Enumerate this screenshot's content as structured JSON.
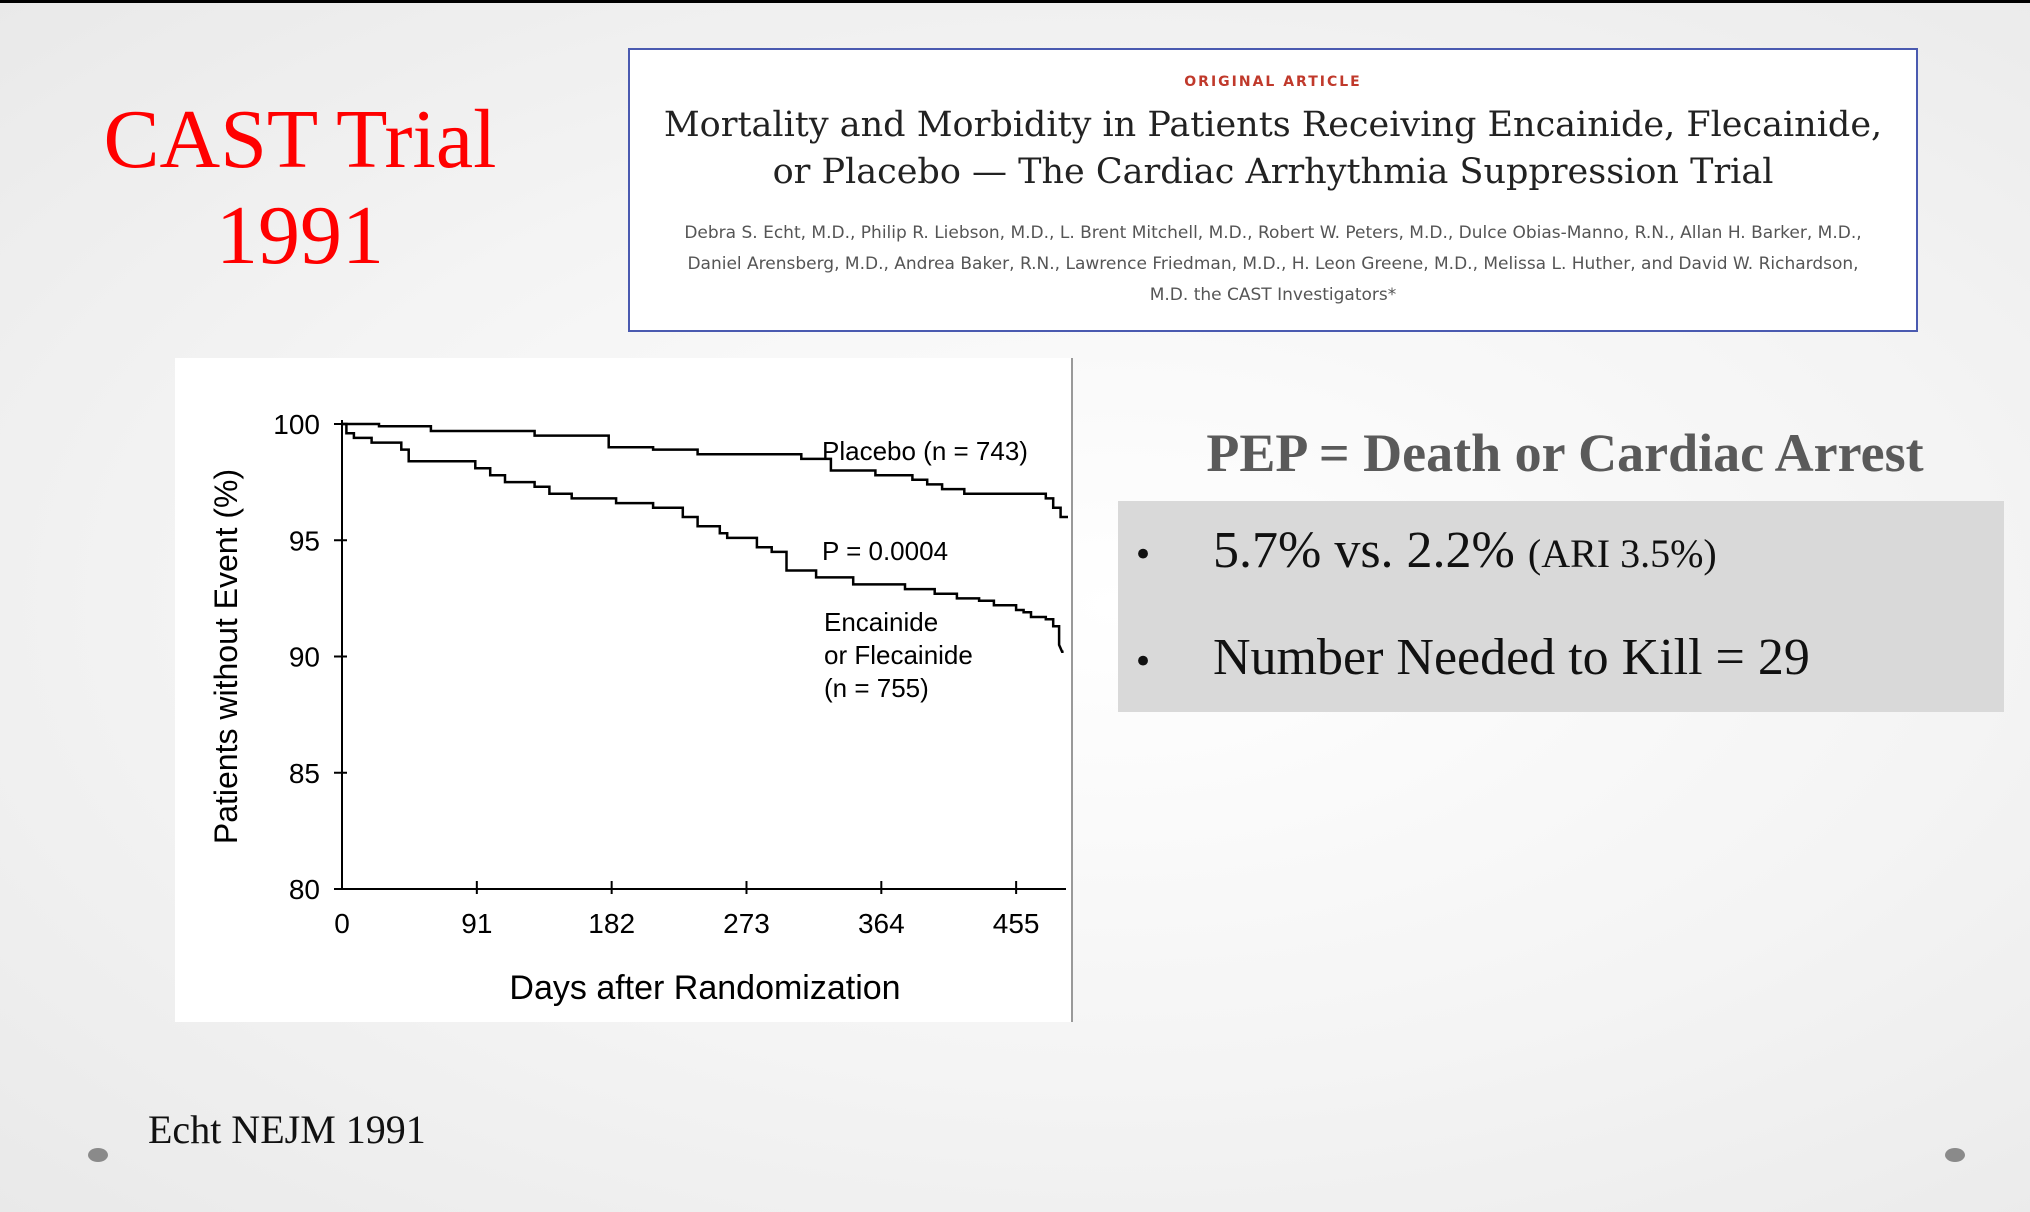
{
  "slide": {
    "title_line1": "CAST Trial",
    "title_line2": "1991",
    "citation": "Echt NEJM 1991"
  },
  "article": {
    "kicker": "ORIGINAL ARTICLE",
    "headline": "Mortality and Morbidity in Patients Receiving Encainide, Flecainide, or Placebo — The Cardiac Arrhythmia Suppression Trial",
    "authors": "Debra S. Echt, M.D., Philip R. Liebson, M.D., L. Brent Mitchell, M.D., Robert W. Peters, M.D., Dulce Obias-Manno, R.N., Allan H. Barker, M.D., Daniel Arensberg, M.D., Andrea Baker, R.N., Lawrence Friedman, M.D., H. Leon Greene, M.D., Melissa L. Huther, and David W. Richardson, M.D. the CAST Investigators*"
  },
  "results": {
    "heading": "PEP = Death or Cardiac Arrest",
    "bullet_symbol": "•",
    "bullet1_main": "5.7% vs. 2.2%",
    "bullet1_small": "(ARI 3.5%)",
    "bullet2": "Number Needed to Kill = 29"
  },
  "chart_data": {
    "type": "line",
    "xlabel": "Days after Randomization",
    "ylabel": "Patients without Event (%)",
    "xlim": [
      0,
      490
    ],
    "ylim": [
      80,
      100
    ],
    "xticks": [
      0,
      91,
      182,
      273,
      364,
      455
    ],
    "yticks": [
      80,
      85,
      90,
      95,
      100
    ],
    "grid": false,
    "annotations": [
      "P = 0.0004"
    ],
    "series": [
      {
        "name": "Placebo (n = 743)",
        "x": [
          0,
          25,
          25,
          60,
          60,
          130,
          130,
          180,
          180,
          210,
          210,
          240,
          240,
          310,
          310,
          330,
          330,
          360,
          360,
          385,
          385,
          395,
          395,
          405,
          405,
          420,
          420,
          475,
          475,
          480,
          480,
          485,
          485,
          490
        ],
        "y": [
          100,
          100,
          99.9,
          99.9,
          99.7,
          99.7,
          99.5,
          99.5,
          99.0,
          99.0,
          98.9,
          98.9,
          98.7,
          98.7,
          98.5,
          98.5,
          98.0,
          98.0,
          97.8,
          97.8,
          97.6,
          97.6,
          97.4,
          97.4,
          97.2,
          97.2,
          97.0,
          97.0,
          96.8,
          96.8,
          96.4,
          96.4,
          96.0,
          96.0
        ]
      },
      {
        "name": "Encainide or Flecainide (n = 755)",
        "x": [
          0,
          3,
          3,
          8,
          8,
          20,
          20,
          40,
          40,
          45,
          45,
          90,
          90,
          100,
          100,
          110,
          110,
          130,
          130,
          140,
          140,
          155,
          155,
          185,
          185,
          210,
          210,
          230,
          230,
          240,
          240,
          255,
          255,
          260,
          260,
          280,
          280,
          290,
          290,
          300,
          300,
          320,
          320,
          345,
          345,
          380,
          380,
          400,
          400,
          415,
          415,
          430,
          430,
          440,
          440,
          455,
          455,
          460,
          460,
          465,
          465,
          475,
          475,
          480,
          480,
          484,
          484,
          486,
          487
        ],
        "y": [
          100,
          100,
          99.6,
          99.6,
          99.4,
          99.4,
          99.2,
          99.2,
          98.9,
          98.9,
          98.4,
          98.4,
          98.1,
          98.1,
          97.8,
          97.8,
          97.5,
          97.5,
          97.3,
          97.3,
          97.0,
          97.0,
          96.8,
          96.8,
          96.6,
          96.6,
          96.4,
          96.4,
          96.0,
          96.0,
          95.6,
          95.6,
          95.3,
          95.3,
          95.1,
          95.1,
          94.7,
          94.7,
          94.5,
          94.5,
          93.7,
          93.7,
          93.4,
          93.4,
          93.1,
          93.1,
          92.9,
          92.9,
          92.7,
          92.7,
          92.5,
          92.5,
          92.4,
          92.4,
          92.2,
          92.2,
          92.0,
          92.0,
          91.9,
          91.9,
          91.7,
          91.7,
          91.6,
          91.6,
          91.3,
          91.3,
          90.5,
          90.2,
          90.2
        ]
      }
    ],
    "series_labels": {
      "placebo": "Placebo (n = 743)",
      "drug_line1": "Encainide",
      "drug_line2": "or Flecainide",
      "drug_line3": "(n = 755)"
    }
  }
}
